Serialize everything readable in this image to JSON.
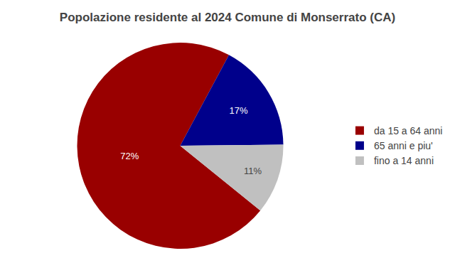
{
  "chart_data": {
    "type": "pie",
    "title": "Popolazione residente al 2024 Comune di Monserrato (CA)",
    "categories": [
      "da 15 a 64 anni",
      "65 anni e piu'",
      "fino a 14 anni"
    ],
    "values": [
      72,
      17,
      11
    ],
    "value_labels": [
      "72%",
      "17%",
      "11%"
    ],
    "colors": [
      "#990000",
      "#00008B",
      "#C0C0C0"
    ],
    "data_labels": true,
    "legend": "right"
  }
}
